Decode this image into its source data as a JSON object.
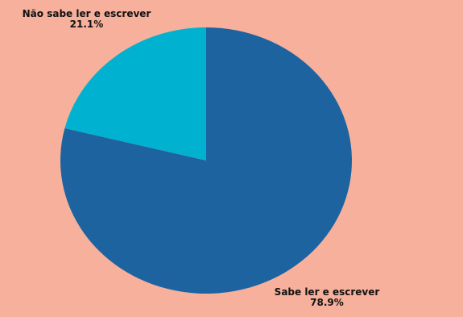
{
  "chart_data": {
    "type": "pie",
    "slices": [
      {
        "label": "Sabe ler e escrever",
        "value": 78.9,
        "value_label": "78.9%",
        "color": "#1c63a0"
      },
      {
        "label": "Não sabe ler e escrever",
        "value": 21.1,
        "value_label": "21.1%",
        "color": "#00b2cf"
      }
    ]
  }
}
